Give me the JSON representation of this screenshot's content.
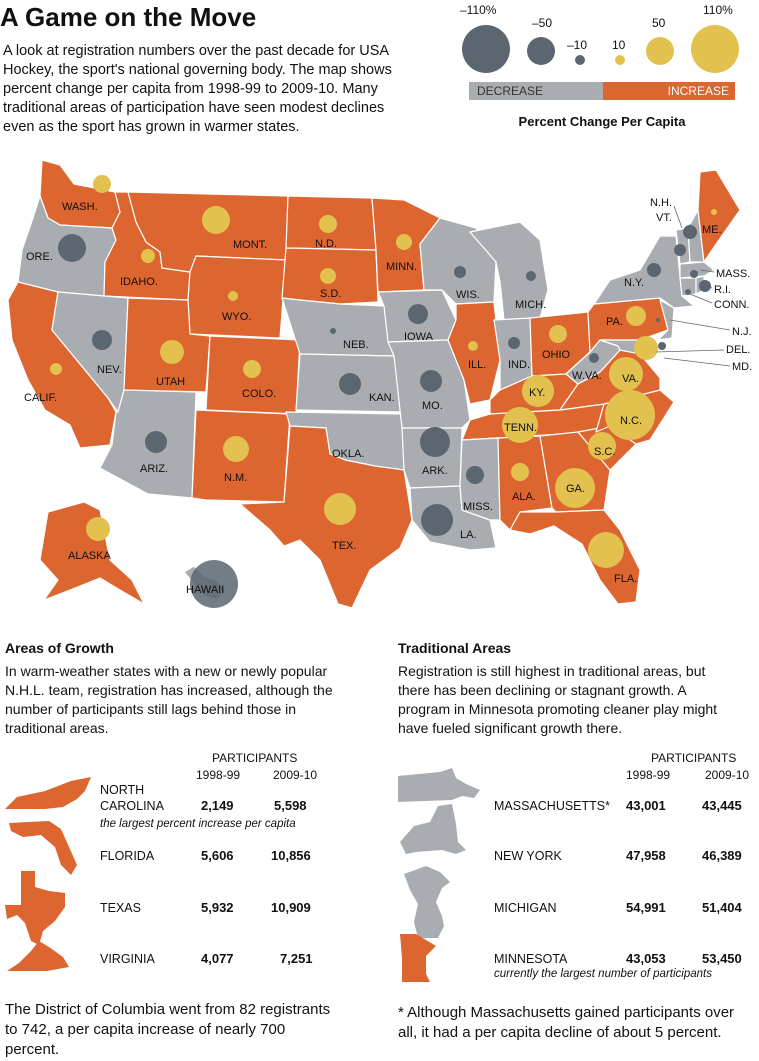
{
  "header": {
    "title": "A Game on the Move",
    "intro": "A look at registration numbers over the past decade for USA Hockey, the sport's national governing body. The map shows percent change per capita from 1998-99 to 2009-10. Many traditional areas of participation have seen modest declines even as the sport has grown in warmer states."
  },
  "legend": {
    "values": [
      "–110%",
      "–50",
      "–10",
      "10",
      "50",
      "110%"
    ],
    "decrease_label": "DECREASE",
    "increase_label": "INCREASE",
    "caption": "Percent Change Per Capita",
    "colors": {
      "decrease": "#a9adb2",
      "increase": "#dc6530",
      "decrease_bubble": "#5b6670",
      "increase_bubble": "#e2c14e"
    }
  },
  "map": {
    "states": [
      {
        "label": "WASH.",
        "trend": "increase"
      },
      {
        "label": "ORE.",
        "trend": "decrease"
      },
      {
        "label": "CALIF.",
        "trend": "increase"
      },
      {
        "label": "IDAHO.",
        "trend": "increase"
      },
      {
        "label": "NEV.",
        "trend": "decrease"
      },
      {
        "label": "MONT.",
        "trend": "increase"
      },
      {
        "label": "WYO.",
        "trend": "increase"
      },
      {
        "label": "UTAH",
        "trend": "increase"
      },
      {
        "label": "ARIZ.",
        "trend": "decrease"
      },
      {
        "label": "COLO.",
        "trend": "increase"
      },
      {
        "label": "N.M.",
        "trend": "increase"
      },
      {
        "label": "N.D.",
        "trend": "increase"
      },
      {
        "label": "S.D.",
        "trend": "increase"
      },
      {
        "label": "NEB.",
        "trend": "decrease"
      },
      {
        "label": "KAN.",
        "trend": "decrease"
      },
      {
        "label": "OKLA.",
        "trend": "decrease"
      },
      {
        "label": "TEX.",
        "trend": "increase"
      },
      {
        "label": "MINN.",
        "trend": "increase"
      },
      {
        "label": "IOWA",
        "trend": "decrease"
      },
      {
        "label": "MO.",
        "trend": "decrease"
      },
      {
        "label": "ARK.",
        "trend": "decrease"
      },
      {
        "label": "LA.",
        "trend": "decrease"
      },
      {
        "label": "WIS.",
        "trend": "decrease"
      },
      {
        "label": "ILL.",
        "trend": "increase"
      },
      {
        "label": "MISS.",
        "trend": "decrease"
      },
      {
        "label": "MICH.",
        "trend": "decrease"
      },
      {
        "label": "IND.",
        "trend": "decrease"
      },
      {
        "label": "KY.",
        "trend": "increase"
      },
      {
        "label": "TENN.",
        "trend": "increase"
      },
      {
        "label": "ALA.",
        "trend": "increase"
      },
      {
        "label": "OHIO",
        "trend": "increase"
      },
      {
        "label": "GA.",
        "trend": "increase"
      },
      {
        "label": "FLA.",
        "trend": "increase"
      },
      {
        "label": "S.C.",
        "trend": "increase"
      },
      {
        "label": "N.C.",
        "trend": "increase"
      },
      {
        "label": "VA.",
        "trend": "increase"
      },
      {
        "label": "W.VA.",
        "trend": "decrease"
      },
      {
        "label": "PA.",
        "trend": "increase"
      },
      {
        "label": "N.Y.",
        "trend": "decrease"
      },
      {
        "label": "ME.",
        "trend": "increase"
      },
      {
        "label": "N.H.",
        "trend": "decrease"
      },
      {
        "label": "VT.",
        "trend": "decrease"
      },
      {
        "label": "MASS.",
        "trend": "decrease"
      },
      {
        "label": "R.I.",
        "trend": "decrease"
      },
      {
        "label": "CONN.",
        "trend": "decrease"
      },
      {
        "label": "N.J.",
        "trend": "decrease"
      },
      {
        "label": "DEL.",
        "trend": "increase"
      },
      {
        "label": "MD.",
        "trend": "decrease"
      },
      {
        "label": "ALASKA",
        "trend": "increase"
      },
      {
        "label": "HAWAII",
        "trend": "decrease"
      }
    ]
  },
  "growth": {
    "heading": "Areas of Growth",
    "text": "In warm-weather states with a new or newly popular N.H.L. team, registration has increased, although the number of participants still lags behind those in traditional areas.",
    "participants_label": "PARTICIPANTS",
    "col1": "1998-99",
    "col2": "2009-10",
    "rows": [
      {
        "name": "NORTH CAROLINA",
        "v1": "2,149",
        "v2": "5,598",
        "note": "the largest percent increase per capita"
      },
      {
        "name": "FLORIDA",
        "v1": "5,606",
        "v2": "10,856"
      },
      {
        "name": "TEXAS",
        "v1": "5,932",
        "v2": "10,909"
      },
      {
        "name": "VIRGINIA",
        "v1": "4,077",
        "v2": "7,251"
      }
    ],
    "footnote": "The District of Columbia went from 82 registrants to 742, a per capita increase of nearly 700 percent."
  },
  "traditional": {
    "heading": "Traditional Areas",
    "text": "Registration is still highest in traditional areas, but there has been declining or stagnant growth. A program in Minnesota promoting cleaner play might have fueled significant growth there.",
    "participants_label": "PARTICIPANTS",
    "col1": "1998-99",
    "col2": "2009-10",
    "rows": [
      {
        "name": "MASSACHUSETTS*",
        "v1": "43,001",
        "v2": "43,445"
      },
      {
        "name": "NEW YORK",
        "v1": "47,958",
        "v2": "46,389"
      },
      {
        "name": "MICHIGAN",
        "v1": "54,991",
        "v2": "51,404"
      },
      {
        "name": "MINNESOTA",
        "v1": "43,053",
        "v2": "53,450",
        "note": "currently the largest number of participants"
      }
    ],
    "footnote": "* Although Massachusetts gained participants over all, it had a per capita decline of about 5 percent."
  }
}
